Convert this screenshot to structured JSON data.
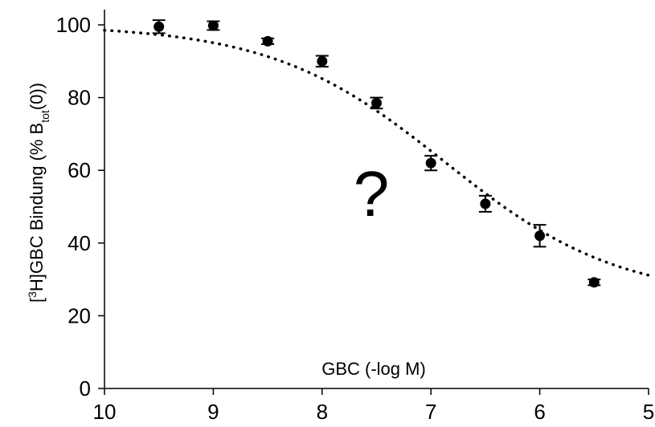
{
  "chart_data": {
    "type": "scatter",
    "title": "",
    "xlabel": "GBC (-log M)",
    "ylabel": {
      "prefix": "[",
      "sup": "3",
      "mid": "H]GBC Bindung (% B",
      "sub": "tot",
      "suffix": "(0))"
    },
    "xlim": [
      10,
      5
    ],
    "x_reversed": true,
    "ylim": [
      0,
      100
    ],
    "xticks": [
      10,
      9,
      8,
      7,
      6,
      5
    ],
    "yticks": [
      0,
      20,
      40,
      60,
      80,
      100
    ],
    "grid": false,
    "legend": "none",
    "points": [
      {
        "x": 9.5,
        "y": 99.5,
        "err": 1.8
      },
      {
        "x": 9.0,
        "y": 99.8,
        "err": 1.2
      },
      {
        "x": 8.5,
        "y": 95.5,
        "err": 0.8
      },
      {
        "x": 8.0,
        "y": 90.0,
        "err": 1.5
      },
      {
        "x": 7.5,
        "y": 78.5,
        "err": 1.5
      },
      {
        "x": 7.0,
        "y": 62.0,
        "err": 2.0
      },
      {
        "x": 6.5,
        "y": 50.8,
        "err": 2.2
      },
      {
        "x": 6.0,
        "y": 42.0,
        "err": 3.0
      },
      {
        "x": 5.5,
        "y": 29.2,
        "err": 0.8
      }
    ],
    "fit_curve": {
      "style": "dotted",
      "model": "sigmoid",
      "top": 100,
      "bottom": 24.5,
      "midpoint": 6.87,
      "slope": 0.8
    },
    "annotation": "?",
    "marker_color": "#000000",
    "curve_color": "#000000"
  }
}
